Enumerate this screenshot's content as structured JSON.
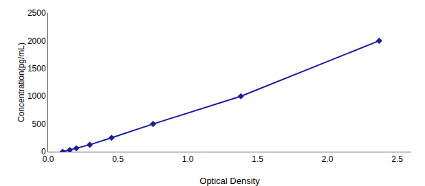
{
  "chart_data": {
    "type": "line",
    "x": [
      0.104,
      0.155,
      0.202,
      0.298,
      0.454,
      0.752,
      1.38,
      2.37
    ],
    "values": [
      0,
      31.25,
      62.5,
      125,
      250,
      500,
      1000,
      2000
    ],
    "color": "#1a1aaa",
    "marker": "diamond",
    "xlabel": "Optical Density",
    "ylabel": "Concentration(pg/mL)",
    "xlim": [
      0,
      2.6
    ],
    "ylim": [
      0,
      2500
    ],
    "xticks": [
      {
        "value": 0,
        "label": "0.0"
      },
      {
        "value": 0.5,
        "label": "0.5"
      },
      {
        "value": 1,
        "label": "1.0"
      },
      {
        "value": 1.5,
        "label": "1.5"
      },
      {
        "value": 2,
        "label": "2.0"
      },
      {
        "value": 2.5,
        "label": "2.5"
      }
    ],
    "yticks": [
      0,
      500,
      1000,
      1500,
      2000,
      2500
    ],
    "grid": false
  }
}
